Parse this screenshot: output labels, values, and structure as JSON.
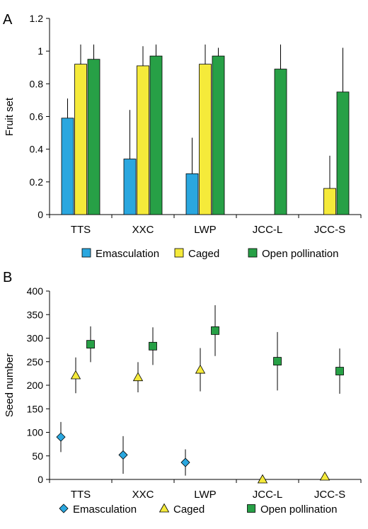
{
  "colors": {
    "emasculation": "#2aa7df",
    "caged": "#f5ea3a",
    "open_pollination": "#27a046",
    "axis": "#000000"
  },
  "legend": [
    "Emasculation",
    "Caged",
    "Open pollination"
  ],
  "chart_data": [
    {
      "panel": "A",
      "type": "bar",
      "ylabel": "Fruit set",
      "ylim": [
        0,
        1.2
      ],
      "yticks": [
        "0",
        "0.2",
        "0.4",
        "0.6",
        "0.8",
        "1",
        "1.2"
      ],
      "categories": [
        "TTS",
        "XXC",
        "LWP",
        "JCC-L",
        "JCC-S"
      ],
      "series": [
        {
          "name": "Emasculation",
          "values": [
            0.59,
            0.34,
            0.25,
            null,
            null
          ],
          "errors": [
            0.12,
            0.3,
            0.22,
            null,
            null
          ]
        },
        {
          "name": "Caged",
          "values": [
            0.92,
            0.91,
            0.92,
            null,
            0.16
          ],
          "errors": [
            0.12,
            0.12,
            0.12,
            null,
            0.2
          ]
        },
        {
          "name": "Open pollination",
          "values": [
            0.95,
            0.97,
            0.97,
            0.89,
            0.75
          ],
          "errors": [
            0.09,
            0.07,
            0.05,
            0.15,
            0.27
          ]
        }
      ],
      "legend_position": "bottom"
    },
    {
      "panel": "B",
      "type": "scatter",
      "ylabel": "Seed number",
      "ylim": [
        0,
        400
      ],
      "yticks": [
        "0",
        "50",
        "100",
        "150",
        "200",
        "250",
        "300",
        "350",
        "400"
      ],
      "categories": [
        "TTS",
        "XXC",
        "LWP",
        "JCC-L",
        "JCC-S"
      ],
      "series": [
        {
          "name": "Emasculation",
          "marker": "diamond",
          "values": [
            90,
            52,
            36,
            null,
            null
          ],
          "errors": [
            32,
            40,
            28,
            null,
            null
          ]
        },
        {
          "name": "Caged",
          "marker": "triangle",
          "values": [
            221,
            217,
            233,
            0,
            6
          ],
          "errors": [
            38,
            32,
            46,
            0,
            0
          ]
        },
        {
          "name": "Open pollination",
          "marker": "square",
          "values": [
            287,
            283,
            316,
            251,
            230
          ],
          "errors": [
            38,
            40,
            54,
            62,
            48
          ]
        }
      ],
      "legend_position": "bottom"
    }
  ]
}
